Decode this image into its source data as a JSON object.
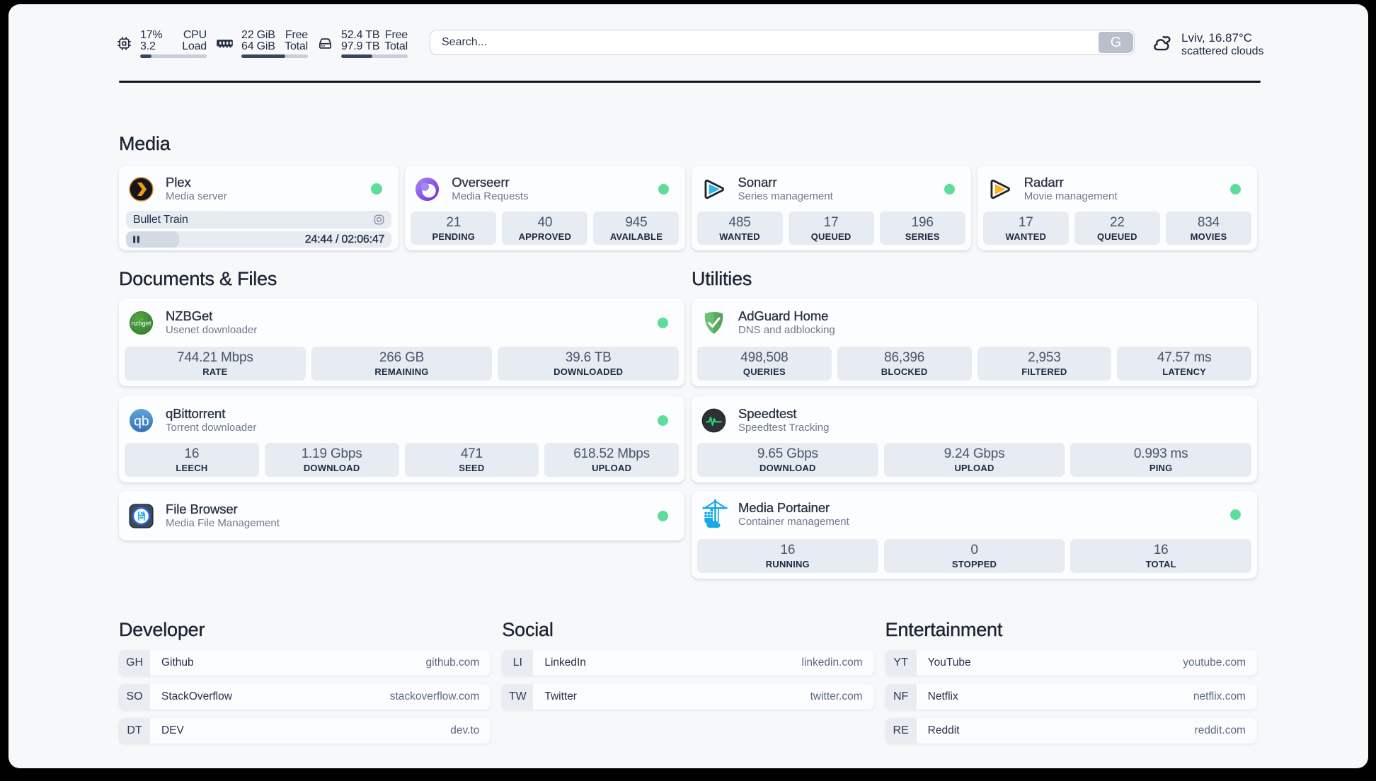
{
  "topbar": {
    "resources": [
      {
        "icon": "cpu-icon",
        "left1": "17%",
        "left2": "3.2",
        "right1": "CPU",
        "right2": "Load",
        "percent": 17
      },
      {
        "icon": "memory-icon",
        "left1": "22 GiB",
        "left2": "64 GiB",
        "right1": "Free",
        "right2": "Total",
        "percent": 66
      },
      {
        "icon": "disk-icon",
        "left1": "52.4 TB",
        "left2": "97.9 TB",
        "right1": "Free",
        "right2": "Total",
        "percent": 47
      }
    ],
    "search": {
      "placeholder": "Search...",
      "button_label": "G"
    },
    "weather": {
      "location": "Lviv, 16.87°C",
      "condition": "scattered clouds"
    }
  },
  "accent": {
    "status_online": "#5edc99"
  },
  "icons": {
    "nzbget_logo_text": "nzbget",
    "qbittorrent_logo_text": "qb"
  },
  "sections": {
    "media": {
      "title": "Media",
      "plex": {
        "title": "Plex",
        "subtitle": "Media server",
        "now_playing": "Bullet Train",
        "time": "24:44 / 02:06:47",
        "progress_percent": 20
      },
      "overseerr": {
        "title": "Overseerr",
        "subtitle": "Media Requests",
        "stats": [
          {
            "value": "21",
            "label": "PENDING"
          },
          {
            "value": "40",
            "label": "APPROVED"
          },
          {
            "value": "945",
            "label": "AVAILABLE"
          }
        ]
      },
      "sonarr": {
        "title": "Sonarr",
        "subtitle": "Series management",
        "stats": [
          {
            "value": "485",
            "label": "WANTED"
          },
          {
            "value": "17",
            "label": "QUEUED"
          },
          {
            "value": "196",
            "label": "SERIES"
          }
        ]
      },
      "radarr": {
        "title": "Radarr",
        "subtitle": "Movie management",
        "stats": [
          {
            "value": "17",
            "label": "WANTED"
          },
          {
            "value": "22",
            "label": "QUEUED"
          },
          {
            "value": "834",
            "label": "MOVIES"
          }
        ]
      }
    },
    "documents": {
      "title": "Documents & Files",
      "nzbget": {
        "title": "NZBGet",
        "subtitle": "Usenet downloader",
        "stats": [
          {
            "value": "744.21 Mbps",
            "label": "RATE"
          },
          {
            "value": "266 GB",
            "label": "REMAINING"
          },
          {
            "value": "39.6 TB",
            "label": "DOWNLOADED"
          }
        ]
      },
      "qbittorrent": {
        "title": "qBittorrent",
        "subtitle": "Torrent downloader",
        "stats": [
          {
            "value": "16",
            "label": "LEECH"
          },
          {
            "value": "1.19 Gbps",
            "label": "DOWNLOAD"
          },
          {
            "value": "471",
            "label": "SEED"
          },
          {
            "value": "618.52 Mbps",
            "label": "UPLOAD"
          }
        ]
      },
      "filebrowser": {
        "title": "File Browser",
        "subtitle": "Media File Management"
      }
    },
    "utilities": {
      "title": "Utilities",
      "adguard": {
        "title": "AdGuard Home",
        "subtitle": "DNS and adblocking",
        "stats": [
          {
            "value": "498,508",
            "label": "QUERIES"
          },
          {
            "value": "86,396",
            "label": "BLOCKED"
          },
          {
            "value": "2,953",
            "label": "FILTERED"
          },
          {
            "value": "47.57 ms",
            "label": "LATENCY"
          }
        ]
      },
      "speedtest": {
        "title": "Speedtest",
        "subtitle": "Speedtest Tracking",
        "stats": [
          {
            "value": "9.65 Gbps",
            "label": "DOWNLOAD"
          },
          {
            "value": "9.24 Gbps",
            "label": "UPLOAD"
          },
          {
            "value": "0.993 ms",
            "label": "PING"
          }
        ]
      },
      "portainer": {
        "title": "Media Portainer",
        "subtitle": "Container management",
        "stats": [
          {
            "value": "16",
            "label": "RUNNING"
          },
          {
            "value": "0",
            "label": "STOPPED"
          },
          {
            "value": "16",
            "label": "TOTAL"
          }
        ]
      }
    },
    "bookmarks": [
      {
        "title": "Developer",
        "items": [
          {
            "abbr": "GH",
            "name": "Github",
            "url": "github.com"
          },
          {
            "abbr": "SO",
            "name": "StackOverflow",
            "url": "stackoverflow.com"
          },
          {
            "abbr": "DT",
            "name": "DEV",
            "url": "dev.to"
          }
        ]
      },
      {
        "title": "Social",
        "items": [
          {
            "abbr": "LI",
            "name": "LinkedIn",
            "url": "linkedin.com"
          },
          {
            "abbr": "TW",
            "name": "Twitter",
            "url": "twitter.com"
          }
        ]
      },
      {
        "title": "Entertainment",
        "items": [
          {
            "abbr": "YT",
            "name": "YouTube",
            "url": "youtube.com"
          },
          {
            "abbr": "NF",
            "name": "Netflix",
            "url": "netflix.com"
          },
          {
            "abbr": "RE",
            "name": "Reddit",
            "url": "reddit.com"
          }
        ]
      }
    ]
  }
}
